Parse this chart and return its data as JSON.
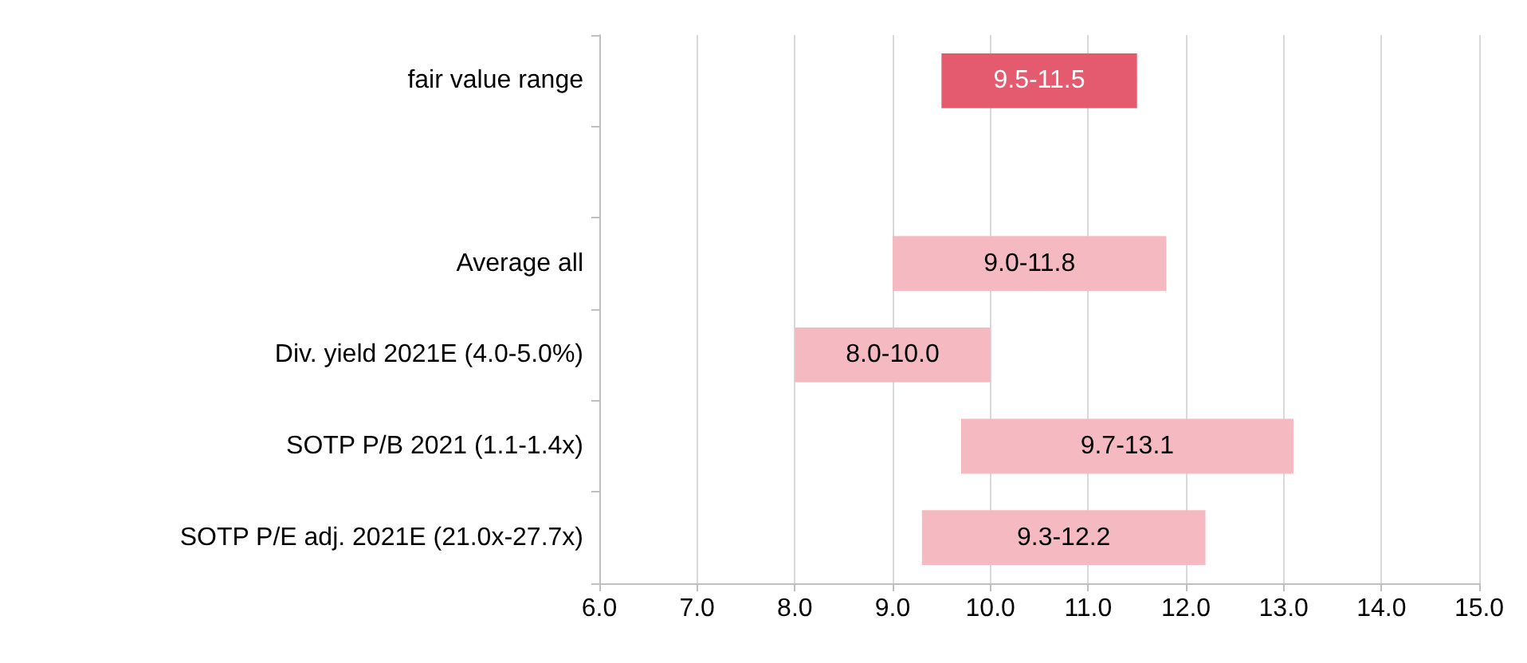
{
  "chart_data": {
    "type": "bar",
    "orientation": "horizontal",
    "categories": [
      "fair value range",
      null,
      "Average all",
      "Div. yield 2021E (4.0-5.0%)",
      "SOTP P/B 2021 (1.1-1.4x)",
      "SOTP P/E adj. 2021E (21.0x-27.7x)"
    ],
    "base": [
      9.5,
      null,
      9.0,
      8.0,
      9.7,
      9.3
    ],
    "values": [
      2.0,
      null,
      2.8,
      2.0,
      3.4,
      2.9
    ],
    "value_labels": [
      "9.5-11.5",
      null,
      "9.0-11.8",
      "8.0-10.0",
      "9.7-13.1",
      "9.3-12.2"
    ],
    "colors": [
      "#e45a6e",
      null,
      "#f4b9c1",
      "#f4b9c1",
      "#f4b9c1",
      "#f4b9c1"
    ],
    "xlim": [
      6,
      15
    ],
    "xticks": [
      {
        "value": 6,
        "label": "6.0"
      },
      {
        "value": 7,
        "label": "7.0"
      },
      {
        "value": 8,
        "label": "8.0"
      },
      {
        "value": 9,
        "label": "9.0"
      },
      {
        "value": 10,
        "label": "10.0"
      },
      {
        "value": 11,
        "label": "11.0"
      },
      {
        "value": 12,
        "label": "12.0"
      },
      {
        "value": 13,
        "label": "13.0"
      },
      {
        "value": 14,
        "label": "14.0"
      },
      {
        "value": 15,
        "label": "15.0"
      }
    ],
    "grid": "x"
  }
}
